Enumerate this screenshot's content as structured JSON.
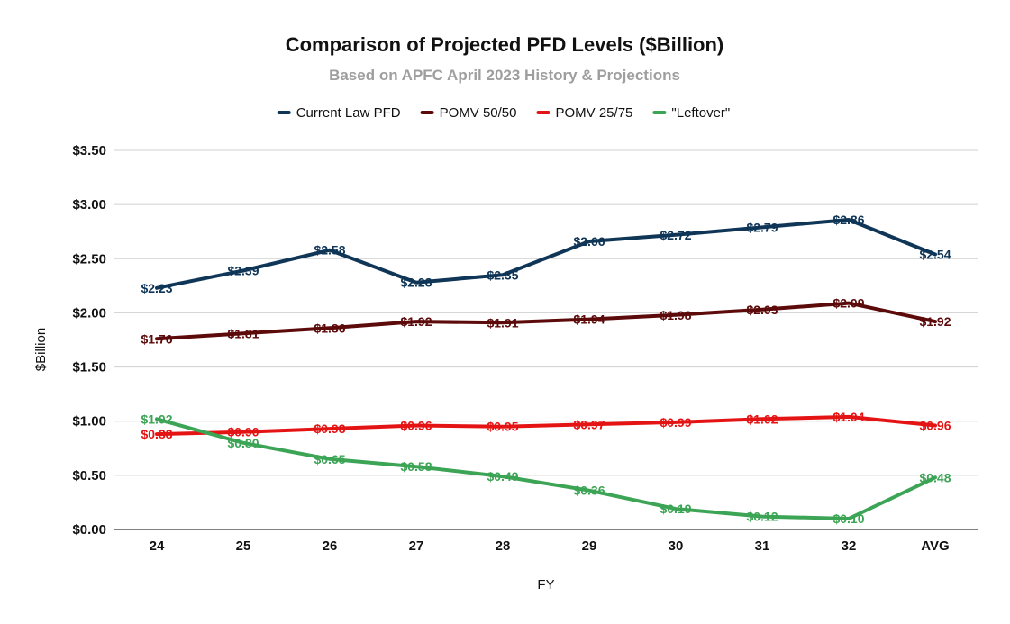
{
  "chart_data": {
    "type": "line",
    "title": "Comparison of Projected PFD Levels ($Billion)",
    "subtitle": "Based on APFC April 2023 History & Projections",
    "xlabel": "FY",
    "ylabel": "$Billion",
    "ylim": [
      0,
      3.5
    ],
    "ytick_values": [
      0,
      0.5,
      1.0,
      1.5,
      2.0,
      2.5,
      3.0,
      3.5
    ],
    "ytick_labels": [
      "$0.00",
      "$0.50",
      "$1.00",
      "$1.50",
      "$2.00",
      "$2.50",
      "$3.00",
      "$3.50"
    ],
    "categories": [
      "24",
      "25",
      "26",
      "27",
      "28",
      "29",
      "30",
      "31",
      "32",
      "AVG"
    ],
    "grid": true,
    "legend_position": "top-center",
    "series": [
      {
        "name": "Current Law PFD",
        "color": "#0f3557",
        "values": [
          2.23,
          2.39,
          2.58,
          2.28,
          2.35,
          2.66,
          2.72,
          2.79,
          2.86,
          2.54
        ],
        "labels": [
          "$2.23",
          "$2.39",
          "$2.58",
          "$2.28",
          "$2.35",
          "$2.66",
          "$2.72",
          "$2.79",
          "$2.86",
          "$2.54"
        ]
      },
      {
        "name": "POMV 50/50",
        "color": "#5c0a0a",
        "values": [
          1.76,
          1.81,
          1.86,
          1.92,
          1.91,
          1.94,
          1.98,
          2.03,
          2.09,
          1.92
        ],
        "labels": [
          "$1.76",
          "$1.81",
          "$1.86",
          "$1.92",
          "$1.91",
          "$1.94",
          "$1.98",
          "$2.03",
          "$2.09",
          "$1.92"
        ]
      },
      {
        "name": "POMV 25/75",
        "color": "#e51414",
        "values": [
          0.88,
          0.9,
          0.93,
          0.96,
          0.95,
          0.97,
          0.99,
          1.02,
          1.04,
          0.96
        ],
        "labels": [
          "$0.88",
          "$0.90",
          "$0.93",
          "$0.96",
          "$0.95",
          "$0.97",
          "$0.99",
          "$1.02",
          "$1.04",
          "$0.96"
        ]
      },
      {
        "name": "\"Leftover\"",
        "color": "#3ca455",
        "values": [
          1.02,
          0.8,
          0.65,
          0.58,
          0.49,
          0.36,
          0.19,
          0.12,
          0.1,
          0.48
        ],
        "labels": [
          "$1.02",
          "$0.80",
          "$0.65",
          "$0.58",
          "$0.49",
          "$0.36",
          "$0.19",
          "$0.12",
          "$0.10",
          "$0.48"
        ]
      }
    ]
  }
}
